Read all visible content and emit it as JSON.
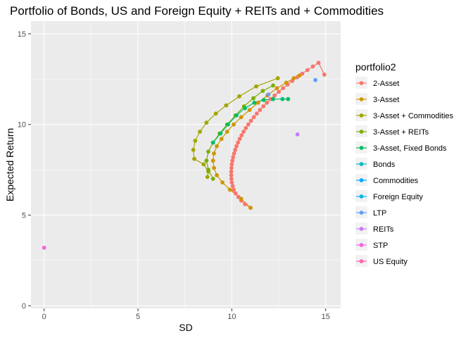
{
  "chart_data": {
    "type": "scatter",
    "title": "Portfolio of Bonds, US and Foreign Equity + REITs and + Commodities",
    "xlabel": "SD",
    "ylabel": "Expected Return",
    "xlim": [
      -0.7,
      15.8
    ],
    "ylim": [
      -0.15,
      15.7
    ],
    "x_ticks": [
      0,
      5,
      10,
      15
    ],
    "x_tick_labels": [
      "0",
      "5",
      "10",
      "15"
    ],
    "y_ticks": [
      0,
      5,
      10,
      15
    ],
    "y_tick_labels": [
      "0",
      "5",
      "10",
      "15"
    ],
    "grid": true,
    "legend_title": "portfolio2",
    "legend_position": "right",
    "series": [
      {
        "name": "2-Asset",
        "color": "#F8766D",
        "line": true,
        "points": [
          [
            11.0,
            5.4
          ],
          [
            10.7,
            5.6
          ],
          [
            10.5,
            5.8
          ],
          [
            10.35,
            6.0
          ],
          [
            10.2,
            6.2
          ],
          [
            10.1,
            6.4
          ],
          [
            10.05,
            6.6
          ],
          [
            10.0,
            6.8
          ],
          [
            9.98,
            7.0
          ],
          [
            9.97,
            7.2
          ],
          [
            9.97,
            7.4
          ],
          [
            9.98,
            7.6
          ],
          [
            10.0,
            7.8
          ],
          [
            10.03,
            8.0
          ],
          [
            10.07,
            8.2
          ],
          [
            10.12,
            8.4
          ],
          [
            10.18,
            8.6
          ],
          [
            10.25,
            8.8
          ],
          [
            10.33,
            9.0
          ],
          [
            10.42,
            9.2
          ],
          [
            10.52,
            9.4
          ],
          [
            10.63,
            9.6
          ],
          [
            10.75,
            9.8
          ],
          [
            10.88,
            10.0
          ],
          [
            11.02,
            10.2
          ],
          [
            11.17,
            10.4
          ],
          [
            11.33,
            10.6
          ],
          [
            11.5,
            10.8
          ],
          [
            11.68,
            11.0
          ],
          [
            11.87,
            11.2
          ],
          [
            12.07,
            11.4
          ],
          [
            12.28,
            11.6
          ],
          [
            12.5,
            11.8
          ],
          [
            12.73,
            12.0
          ],
          [
            12.97,
            12.2
          ],
          [
            13.22,
            12.4
          ],
          [
            13.48,
            12.6
          ],
          [
            13.75,
            12.8
          ],
          [
            14.03,
            13.0
          ],
          [
            14.32,
            13.2
          ],
          [
            14.62,
            13.4
          ],
          [
            14.93,
            12.75
          ]
        ]
      },
      {
        "name": "3-Asset",
        "color": "#CD9600",
        "line": true,
        "points": [
          [
            11.0,
            5.4
          ],
          [
            10.5,
            5.9
          ],
          [
            9.9,
            6.4
          ],
          [
            9.5,
            6.8
          ],
          [
            9.2,
            7.2
          ],
          [
            9.05,
            7.6
          ],
          [
            9.0,
            8.0
          ],
          [
            9.05,
            8.4
          ],
          [
            9.2,
            8.8
          ],
          [
            9.45,
            9.2
          ],
          [
            9.75,
            9.6
          ],
          [
            10.1,
            10.0
          ],
          [
            10.5,
            10.4
          ],
          [
            10.95,
            10.8
          ],
          [
            11.4,
            11.2
          ],
          [
            11.9,
            11.6
          ],
          [
            12.4,
            12.0
          ],
          [
            12.9,
            12.3
          ],
          [
            13.3,
            12.55
          ],
          [
            13.6,
            12.7
          ]
        ]
      },
      {
        "name": "3-Asset + Commodities",
        "color": "#A3A500",
        "line": true,
        "points": [
          [
            12.45,
            12.55
          ],
          [
            11.3,
            12.1
          ],
          [
            10.4,
            11.55
          ],
          [
            9.7,
            11.05
          ],
          [
            9.15,
            10.6
          ],
          [
            8.65,
            10.1
          ],
          [
            8.3,
            9.6
          ],
          [
            8.05,
            9.1
          ],
          [
            7.95,
            8.6
          ],
          [
            8.0,
            8.1
          ],
          [
            8.5,
            7.8
          ],
          [
            8.75,
            7.4
          ],
          [
            8.7,
            7.1
          ]
        ]
      },
      {
        "name": "3-Asset + REITs",
        "color": "#7CAE00",
        "line": true,
        "points": [
          [
            9.0,
            7.0
          ],
          [
            8.75,
            7.5
          ],
          [
            8.65,
            8.0
          ],
          [
            8.75,
            8.5
          ],
          [
            9.0,
            9.0
          ],
          [
            9.35,
            9.5
          ],
          [
            9.75,
            10.0
          ],
          [
            10.2,
            10.5
          ],
          [
            10.65,
            11.0
          ],
          [
            11.15,
            11.45
          ],
          [
            11.65,
            11.85
          ],
          [
            12.2,
            12.15
          ]
        ]
      },
      {
        "name": "3-Asset, Fixed Bonds",
        "color": "#00BE67",
        "line": true,
        "points": [
          [
            9.0,
            9.0
          ],
          [
            9.4,
            9.5
          ],
          [
            9.8,
            10.0
          ],
          [
            10.25,
            10.5
          ],
          [
            10.7,
            10.9
          ],
          [
            11.2,
            11.2
          ],
          [
            11.7,
            11.35
          ],
          [
            12.2,
            11.4
          ],
          [
            12.7,
            11.4
          ],
          [
            13.0,
            11.4
          ]
        ]
      },
      {
        "name": "Bonds",
        "color": "#00BFC4",
        "line": false,
        "points": []
      },
      {
        "name": "Commodities",
        "color": "#00A9FF",
        "line": false,
        "points": []
      },
      {
        "name": "Foreign Equity",
        "color": "#00B8E7",
        "line": false,
        "points": []
      },
      {
        "name": "LTP",
        "color": "#619CFF",
        "line": false,
        "points": [
          [
            11.95,
            11.65
          ],
          [
            14.45,
            12.45
          ]
        ]
      },
      {
        "name": "REITs",
        "color": "#C77CFF",
        "line": false,
        "points": [
          [
            13.5,
            9.45
          ]
        ]
      },
      {
        "name": "STP",
        "color": "#F564E3",
        "line": false,
        "points": [
          [
            0.0,
            3.2
          ]
        ]
      },
      {
        "name": "US Equity",
        "color": "#FF64B0",
        "line": false,
        "points": []
      }
    ]
  }
}
